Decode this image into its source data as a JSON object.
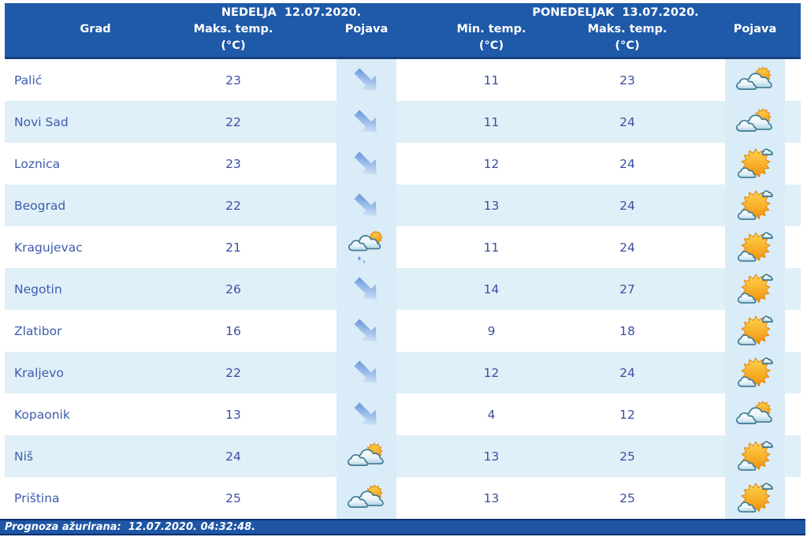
{
  "table": {
    "day1": {
      "title": "NEDELJA  12.07.2020.",
      "columns": {
        "city": "Grad",
        "max_temp": "Maks. temp.",
        "max_temp_unit": "(°C)",
        "condition": "Pojava"
      }
    },
    "day2": {
      "title": "PONEDELJAK  13.07.2020.",
      "columns": {
        "min_temp": "Min. temp.",
        "min_temp_unit": "(°C)",
        "max_temp": "Maks. temp.",
        "max_temp_unit": "(°C)",
        "condition": "Pojava"
      }
    }
  },
  "rows": [
    {
      "city": "Palić",
      "day1_max": "23",
      "day1_icon": "trend-arrow",
      "day2_min": "11",
      "day2_max": "23",
      "day2_icon": "cloud-sun"
    },
    {
      "city": "Novi Sad",
      "day1_max": "22",
      "day1_icon": "trend-arrow",
      "day2_min": "11",
      "day2_max": "24",
      "day2_icon": "cloud-sun"
    },
    {
      "city": "Loznica",
      "day1_max": "23",
      "day1_icon": "trend-arrow",
      "day2_min": "12",
      "day2_max": "24",
      "day2_icon": "sun-cloud"
    },
    {
      "city": "Beograd",
      "day1_max": "22",
      "day1_icon": "trend-arrow",
      "day2_min": "13",
      "day2_max": "24",
      "day2_icon": "sun-cloud"
    },
    {
      "city": "Kragujevac",
      "day1_max": "21",
      "day1_icon": "cloud-sun-rain",
      "day2_min": "11",
      "day2_max": "24",
      "day2_icon": "sun-cloud"
    },
    {
      "city": "Negotin",
      "day1_max": "26",
      "day1_icon": "trend-arrow",
      "day2_min": "14",
      "day2_max": "27",
      "day2_icon": "sun-cloud"
    },
    {
      "city": "Zlatibor",
      "day1_max": "16",
      "day1_icon": "trend-arrow",
      "day2_min": "9",
      "day2_max": "18",
      "day2_icon": "sun-cloud"
    },
    {
      "city": "Kraljevo",
      "day1_max": "22",
      "day1_icon": "trend-arrow",
      "day2_min": "12",
      "day2_max": "24",
      "day2_icon": "sun-cloud"
    },
    {
      "city": "Kopaonik",
      "day1_max": "13",
      "day1_icon": "trend-arrow",
      "day2_min": "4",
      "day2_max": "12",
      "day2_icon": "cloud-sun"
    },
    {
      "city": "Niš",
      "day1_max": "24",
      "day1_icon": "cloud-sun",
      "day2_min": "13",
      "day2_max": "25",
      "day2_icon": "sun-cloud"
    },
    {
      "city": "Priština",
      "day1_max": "25",
      "day1_icon": "cloud-sun",
      "day2_min": "13",
      "day2_max": "25",
      "day2_icon": "sun-cloud"
    }
  ],
  "icons": {
    "trend-arrow": "blue diagonal down-right arrow",
    "cloud-sun": "cloudy with sunny intervals",
    "sun-cloud": "mostly sunny with small clouds",
    "cloud-sun-rain": "cloudy with sun and light rain"
  },
  "footer": {
    "updated_label": "Prognoza ažurirana:",
    "updated_timestamp": "12.07.2020. 04:32:48."
  },
  "colors": {
    "header_bg": "#1F5AA9",
    "header_border": "#16407F",
    "row_alt_bg": "#E0F0F8",
    "icon_cell_bg": "#D9ECF7",
    "city_text": "#3D5CAB",
    "temp_text": "#3C4F9F",
    "footer_bg": "#1E55A4",
    "footer_border": "#0C2F6B",
    "sun_orange": "#F59A1E",
    "cloud_outline": "#3F7B94",
    "arrow_blue": "#4E83D4"
  }
}
